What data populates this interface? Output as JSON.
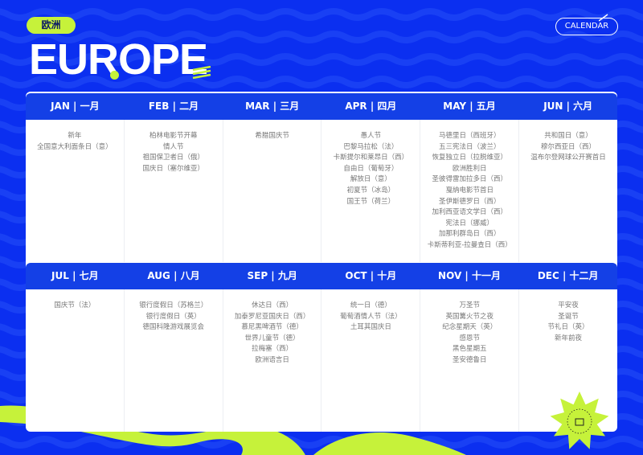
{
  "header": {
    "tag": "欧洲",
    "title": "EUROPE",
    "calendar_button": "CALENDAR"
  },
  "colors": {
    "background": "#0b2ff0",
    "accent": "#c6f23a",
    "header": "#1440e6"
  },
  "rows": [
    {
      "months": [
        {
          "label": "JAN | 一月",
          "events": [
            "新年",
            "全国意大利面条日（意）"
          ]
        },
        {
          "label": "FEB | 二月",
          "events": [
            "柏林电影节开幕",
            "情人节",
            "祖国保卫者日（俄）",
            "国庆日（塞尔维亚）"
          ]
        },
        {
          "label": "MAR | 三月",
          "events": [
            "希腊国庆节"
          ]
        },
        {
          "label": "APR | 四月",
          "events": [
            "愚人节",
            "巴黎马拉松（法）",
            "卡斯提尔和莱昂日（西）",
            "自由日（葡萄牙）",
            "解放日（意）",
            "初夏节（冰岛）",
            "国王节（荷兰）"
          ]
        },
        {
          "label": "MAY | 五月",
          "events": [
            "马德里日（西班牙）",
            "五三宪法日（波兰）",
            "恢复独立日（拉脱维亚）",
            "欧洲胜利日",
            "圣彼得雷加拉多日（西）",
            "戛纳电影节首日",
            "圣伊斯德罗日（西）",
            "加利西亚语文学日（西）",
            "宪法日（挪威）",
            "加那利群岛日（西）",
            "卡斯蒂利亚-拉曼查日（西）"
          ]
        },
        {
          "label": "JUN | 六月",
          "events": [
            "共和国日（意）",
            "穆尔西亚日（西）",
            "温布尔登网球公开赛首日"
          ]
        }
      ]
    },
    {
      "months": [
        {
          "label": "JUL | 七月",
          "events": [
            "国庆节（法）"
          ]
        },
        {
          "label": "AUG | 八月",
          "events": [
            "银行度假日（苏格兰）",
            "银行度假日（英）",
            "德国科隆游戏展览会"
          ]
        },
        {
          "label": "SEP | 九月",
          "events": [
            "休达日（西）",
            "加泰罗尼亚国庆日（西）",
            "慕尼黑啤酒节（德）",
            "世界儿童节（德）",
            "拉梅塞（西）",
            "欧洲语言日"
          ]
        },
        {
          "label": "OCT | 十月",
          "events": [
            "统一日（德）",
            "葡萄酒情人节（法）",
            "土耳其国庆日"
          ]
        },
        {
          "label": "NOV | 十一月",
          "events": [
            "万圣节",
            "英国篝火节之夜",
            "纪念星期天（英）",
            "感恩节",
            "黑色星期五",
            "圣安德鲁日"
          ]
        },
        {
          "label": "DEC | 十二月",
          "events": [
            "平安夜",
            "圣诞节",
            "节礼日（英）",
            "新年前夜"
          ]
        }
      ]
    }
  ]
}
